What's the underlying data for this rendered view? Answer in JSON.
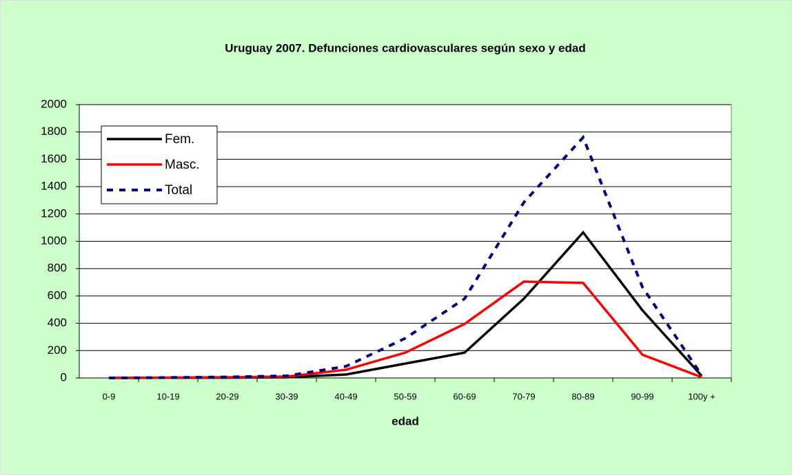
{
  "chart_data": {
    "type": "line",
    "title": "Uruguay 2007. Defunciones cardiovasculares según sexo y edad",
    "x_label": "edad",
    "categories": [
      "0-9",
      "10-19",
      "20-29",
      "30-39",
      "40-49",
      "50-59",
      "60-69",
      "70-79",
      "80-89",
      "90-99",
      "100y +"
    ],
    "series": [
      {
        "name": "Fem.",
        "color": "#000000",
        "linestyle": "solid",
        "values": [
          0,
          1,
          2,
          5,
          25,
          105,
          185,
          580,
          1065,
          495,
          15
        ]
      },
      {
        "name": "Masc.",
        "color": "#ff0000",
        "linestyle": "solid",
        "values": [
          0,
          2,
          5,
          10,
          60,
          185,
          395,
          705,
          695,
          170,
          5
        ]
      },
      {
        "name": "Total",
        "color": "#000080",
        "linestyle": "dashed",
        "values": [
          0,
          3,
          7,
          15,
          85,
          290,
          580,
          1285,
          1760,
          665,
          20
        ]
      }
    ],
    "ylim": [
      0,
      2000
    ],
    "yticks": [
      0,
      200,
      400,
      600,
      800,
      1000,
      1200,
      1400,
      1600,
      1800,
      2000
    ],
    "grid": true,
    "legend": "upper left"
  }
}
